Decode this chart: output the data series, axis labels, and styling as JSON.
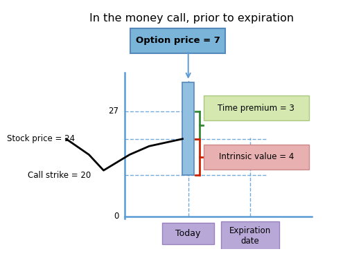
{
  "title": "In the money call, prior to expiration",
  "title_fontsize": 11.5,
  "background_color": "#ffffff",
  "option_price_label": "Option price = 7",
  "option_box_facecolor": "#7ab4d8",
  "option_box_edgecolor": "#5588bb",
  "time_premium_label": "Time premium = 3",
  "time_premium_box_color": "#d4e8b0",
  "time_premium_edge_color": "#aac880",
  "intrinsic_label": "Intrinsic value = 4",
  "intrinsic_box_color": "#e8b0b0",
  "intrinsic_edge_color": "#cc8888",
  "today_label": "Today",
  "expiration_label": "Expiration\ndate",
  "bottom_box_color": "#b8a8d8",
  "bottom_box_edge": "#9980bb",
  "stock_price_label": "Stock price = 24",
  "call_strike_label": "Call strike = 20",
  "axis_color": "#5b9bd5",
  "bar_facecolor": "#92c0e0",
  "bar_edgecolor": "#5588bb",
  "green_bracket_color": "#338833",
  "red_bracket_color": "#cc2200",
  "zigzag_color": "#000000",
  "label_27": "27",
  "label_0": "0"
}
